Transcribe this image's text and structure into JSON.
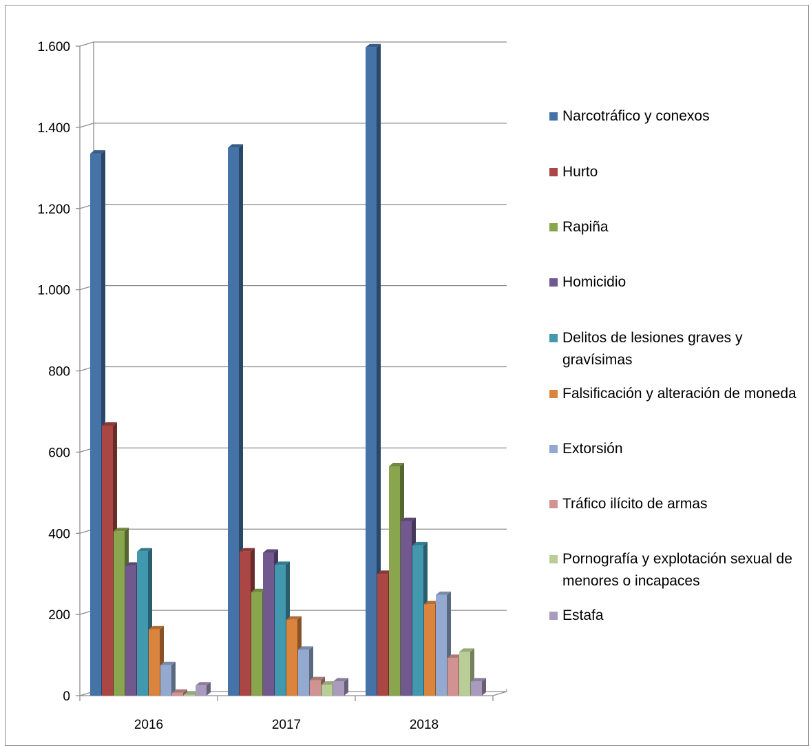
{
  "chart_data": {
    "type": "bar",
    "categories": [
      "2016",
      "2017",
      "2018"
    ],
    "ylim": [
      0,
      1600
    ],
    "yticks": [
      0,
      200,
      400,
      600,
      800,
      1000,
      1200,
      1400,
      1600
    ],
    "ytick_labels": [
      "0",
      "200",
      "400",
      "600",
      "800",
      "1.000",
      "1.200",
      "1.400",
      "1.600"
    ],
    "grid": true,
    "legend_position": "right",
    "series": [
      {
        "name": "Narcotráfico y conexos",
        "color": "#4572A7",
        "values": [
          1335,
          1350,
          1597
        ]
      },
      {
        "name": "Hurto",
        "color": "#AA4643",
        "values": [
          665,
          355,
          300
        ]
      },
      {
        "name": "Rapiña",
        "color": "#89A54E",
        "values": [
          405,
          255,
          565
        ]
      },
      {
        "name": "Homicidio",
        "color": "#71588F",
        "values": [
          320,
          352,
          430
        ]
      },
      {
        "name": "Delitos de lesiones graves y gravísimas",
        "color": "#4198AF",
        "values": [
          355,
          322,
          370
        ]
      },
      {
        "name": "Falsificación y alteración de moneda",
        "color": "#DB843D",
        "values": [
          163,
          187,
          225
        ]
      },
      {
        "name": "Extorsión",
        "color": "#93A9CF",
        "values": [
          75,
          113,
          248
        ]
      },
      {
        "name": "Tráfico ilícito de armas",
        "color": "#D19392",
        "values": [
          7,
          38,
          93
        ]
      },
      {
        "name": "Pornografía y explotación sexual de  menores o incapaces",
        "color": "#B9CD96",
        "values": [
          2,
          27,
          108
        ]
      },
      {
        "name": "Estafa",
        "color": "#A99BBD",
        "values": [
          25,
          35,
          35
        ]
      }
    ]
  }
}
